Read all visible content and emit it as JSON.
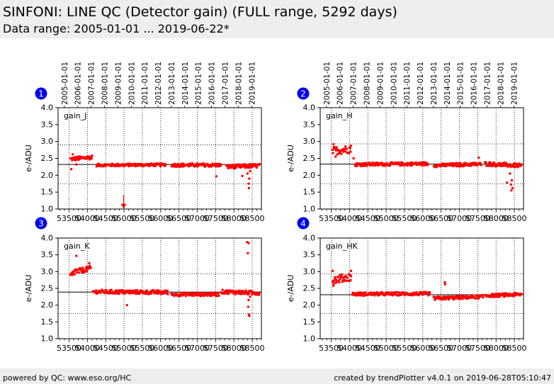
{
  "header": {
    "title": "SINFONI: LINE QC (Detector gain) (FULL range, 5292 days)",
    "subtitle": "Data range: 2005-01-01 ... 2019-06-22*"
  },
  "footer": {
    "left": "powered by QC: www.eso.org/HC",
    "right": "created by trendPlotter v4.0.1 on 2019-06-28T05:10:47"
  },
  "colors": {
    "data": "#ff0000",
    "badge": "#0000ee",
    "reference_line": "#000000",
    "header_bg": "#eeeeee"
  },
  "chart_data": [
    {
      "type": "scatter",
      "badge": "1",
      "label": "gain_J",
      "ylabel": "e-/ADU",
      "ylim": [
        1.0,
        4.0
      ],
      "yticks": [
        "1.0",
        "1.5",
        "2.0",
        "2.5",
        "3.0",
        "3.5",
        "4.0"
      ],
      "xlim": [
        53200,
        58750
      ],
      "xticks": [
        "53500",
        "54000",
        "54500",
        "55000",
        "55500",
        "56000",
        "56500",
        "57000",
        "57500",
        "58000",
        "58500"
      ],
      "date_ticks": [
        "2005-01-01",
        "2006-01-01",
        "2007-01-01",
        "2008-01-01",
        "2009-01-01",
        "2010-01-01",
        "2011-01-01",
        "2012-01-01",
        "2013-01-01",
        "2014-01-01",
        "2015-01-01",
        "2016-01-01",
        "2017-01-01",
        "2018-01-01",
        "2019-01-01"
      ],
      "reference": 2.32,
      "limits": [
        1.75,
        2.9
      ],
      "segments": [
        {
          "x": [
            53540,
            54130
          ],
          "y": [
            2.48,
            2.53
          ],
          "spread": 0.06
        },
        {
          "x": [
            54250,
            56150
          ],
          "y": [
            2.3,
            2.31
          ],
          "spread": 0.04
        },
        {
          "x": [
            56300,
            57650
          ],
          "y": [
            2.3,
            2.3
          ],
          "spread": 0.05
        },
        {
          "x": [
            57800,
            58700
          ],
          "y": [
            2.25,
            2.28
          ],
          "spread": 0.06
        }
      ],
      "outliers": [
        [
          53560,
          2.18
        ],
        [
          53600,
          2.62
        ],
        [
          53700,
          2.32
        ],
        [
          57520,
          1.97
        ],
        [
          58230,
          1.98
        ],
        [
          58370,
          2.05
        ],
        [
          58400,
          1.75
        ],
        [
          58410,
          1.62
        ],
        [
          58420,
          1.9
        ],
        [
          58440,
          2.12
        ]
      ],
      "arrows": [
        {
          "x": 54990,
          "from": 1.42,
          "to": 1.05
        }
      ]
    },
    {
      "type": "scatter",
      "badge": "2",
      "label": "gain_H",
      "ylabel": "e-/ADU",
      "ylim": [
        1.0,
        4.0
      ],
      "yticks": [
        "1.0",
        "1.5",
        "2.0",
        "2.5",
        "3.0",
        "3.5",
        "4.0"
      ],
      "xlim": [
        53200,
        58750
      ],
      "xticks": [
        "53500",
        "54000",
        "54500",
        "55000",
        "55500",
        "56000",
        "56500",
        "57000",
        "57500",
        "58000",
        "58500"
      ],
      "date_ticks": [
        "2005-01-01",
        "2006-01-01",
        "2007-01-01",
        "2008-01-01",
        "2009-01-01",
        "2010-01-01",
        "2011-01-01",
        "2012-01-01",
        "2013-01-01",
        "2014-01-01",
        "2015-01-01",
        "2016-01-01",
        "2017-01-01",
        "2018-01-01",
        "2019-01-01"
      ],
      "reference": 2.33,
      "limits": [
        1.75,
        2.93
      ],
      "segments": [
        {
          "x": [
            53540,
            54050
          ],
          "y": [
            2.72,
            2.78
          ],
          "spread": 0.12
        },
        {
          "x": [
            54150,
            56150
          ],
          "y": [
            2.32,
            2.34
          ],
          "spread": 0.05
        },
        {
          "x": [
            56300,
            57600
          ],
          "y": [
            2.29,
            2.33
          ],
          "spread": 0.05
        },
        {
          "x": [
            57700,
            58700
          ],
          "y": [
            2.34,
            2.28
          ],
          "spread": 0.06
        }
      ],
      "outliers": [
        [
          53560,
          2.92
        ],
        [
          53620,
          2.55
        ],
        [
          54110,
          2.5
        ],
        [
          57530,
          2.52
        ],
        [
          58300,
          1.78
        ],
        [
          58380,
          2.05
        ],
        [
          58410,
          1.72
        ],
        [
          58420,
          1.55
        ],
        [
          58430,
          1.85
        ],
        [
          58450,
          1.62
        ]
      ],
      "arrows": []
    },
    {
      "type": "scatter",
      "badge": "3",
      "label": "gain_K",
      "ylabel": "e-/ADU",
      "ylim": [
        1.0,
        4.0
      ],
      "yticks": [
        "1.0",
        "1.5",
        "2.0",
        "2.5",
        "3.0",
        "3.5",
        "4.0"
      ],
      "xlim": [
        53200,
        58750
      ],
      "xticks": [
        "53500",
        "54000",
        "54500",
        "55000",
        "55500",
        "56000",
        "56500",
        "57000",
        "57500",
        "58000",
        "58500"
      ],
      "date_ticks": [],
      "reference": 2.39,
      "limits": [
        1.75,
        2.93
      ],
      "segments": [
        {
          "x": [
            53540,
            53700
          ],
          "y": [
            2.85,
            3.05
          ],
          "spread": 0.1
        },
        {
          "x": [
            53700,
            54100
          ],
          "y": [
            3.0,
            3.1
          ],
          "spread": 0.08
        },
        {
          "x": [
            54150,
            56200
          ],
          "y": [
            2.4,
            2.38
          ],
          "spread": 0.06
        },
        {
          "x": [
            56300,
            57600
          ],
          "y": [
            2.32,
            2.32
          ],
          "spread": 0.05
        },
        {
          "x": [
            57650,
            58700
          ],
          "y": [
            2.4,
            2.36
          ],
          "spread": 0.06
        }
      ],
      "outliers": [
        [
          53700,
          3.47
        ],
        [
          54050,
          3.25
        ],
        [
          55080,
          2.0
        ],
        [
          58390,
          1.95
        ],
        [
          58400,
          2.15
        ],
        [
          58410,
          1.72
        ],
        [
          58420,
          1.68
        ],
        [
          58440,
          2.25
        ],
        [
          58360,
          3.88
        ],
        [
          58400,
          3.85
        ],
        [
          58380,
          3.55
        ]
      ],
      "arrows": []
    },
    {
      "type": "scatter",
      "badge": "4",
      "label": "gain_HK",
      "ylabel": "e-/ADU",
      "ylim": [
        1.0,
        4.0
      ],
      "yticks": [
        "1.0",
        "1.5",
        "2.0",
        "2.5",
        "3.0",
        "3.5",
        "4.0"
      ],
      "xlim": [
        53200,
        58750
      ],
      "xticks": [
        "53500",
        "54000",
        "54500",
        "55000",
        "55500",
        "56000",
        "56500",
        "57000",
        "57500",
        "58000",
        "58500"
      ],
      "date_ticks": [],
      "reference": 2.31,
      "limits": [
        1.75,
        2.93
      ],
      "segments": [
        {
          "x": [
            53540,
            54050
          ],
          "y": [
            2.75,
            2.85
          ],
          "spread": 0.12
        },
        {
          "x": [
            54080,
            56200
          ],
          "y": [
            2.33,
            2.34
          ],
          "spread": 0.05
        },
        {
          "x": [
            56300,
            57650
          ],
          "y": [
            2.2,
            2.25
          ],
          "spread": 0.05
        },
        {
          "x": [
            57700,
            58700
          ],
          "y": [
            2.28,
            2.32
          ],
          "spread": 0.05
        }
      ],
      "outliers": [
        [
          53540,
          3.02
        ],
        [
          53560,
          2.58
        ],
        [
          54040,
          3.02
        ],
        [
          56600,
          2.68
        ],
        [
          56610,
          2.62
        ]
      ],
      "arrows": []
    }
  ]
}
